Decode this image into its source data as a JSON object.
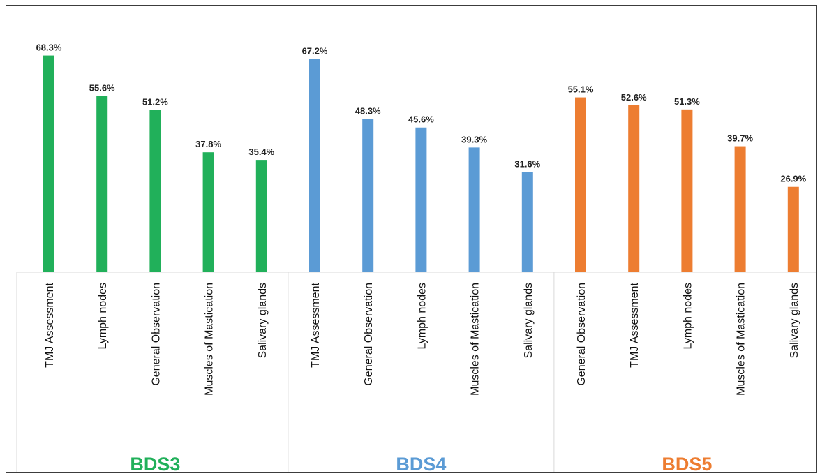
{
  "chart_data": {
    "type": "bar",
    "ylabel": "",
    "xlabel": "",
    "ylim": [
      0,
      70
    ],
    "grid": false,
    "legend": "none",
    "groups": [
      {
        "name": "BDS3",
        "color": "#21b05a",
        "categories": [
          "TMJ Assessment",
          "Lymph nodes",
          "General Observation",
          "Muscles of Mastication",
          "Salivary glands"
        ],
        "values": [
          68.3,
          55.6,
          51.2,
          37.8,
          35.4
        ],
        "labels": [
          "68.3%",
          "55.6%",
          "51.2%",
          "37.8%",
          "35.4%"
        ]
      },
      {
        "name": "BDS4",
        "color": "#5b9bd5",
        "categories": [
          "TMJ Assessment",
          "General Observation",
          "Lymph nodes",
          "Muscles of Mastication",
          "Salivary glands"
        ],
        "values": [
          67.2,
          48.3,
          45.6,
          39.3,
          31.6
        ],
        "labels": [
          "67.2%",
          "48.3%",
          "45.6%",
          "39.3%",
          "31.6%"
        ]
      },
      {
        "name": "BDS5",
        "color": "#ed7d31",
        "categories": [
          "General Observation",
          "TMJ Assessment",
          "Lymph nodes",
          "Muscles of Mastication",
          "Salivary glands"
        ],
        "values": [
          55.1,
          52.6,
          51.3,
          39.7,
          26.9
        ],
        "labels": [
          "55.1%",
          "52.6%",
          "51.3%",
          "39.7%",
          "26.9%"
        ]
      }
    ]
  }
}
